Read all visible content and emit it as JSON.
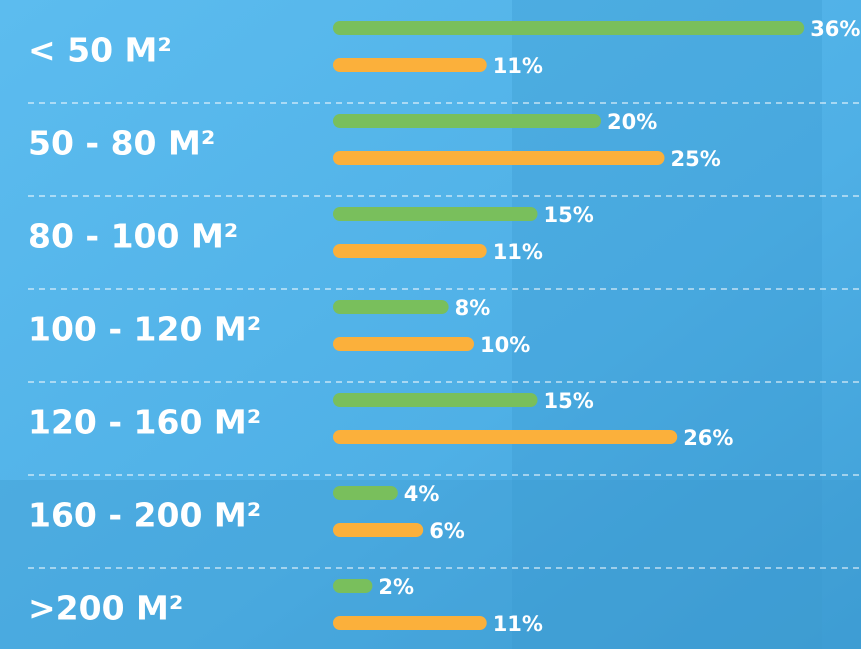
{
  "chart_data": {
    "type": "bar",
    "orientation": "horizontal",
    "categories": [
      "< 50 M²",
      "50 - 80 M²",
      "80 - 100 M²",
      "100 - 120 M²",
      "120 - 160 M²",
      "160 - 200 M²",
      ">200 M²"
    ],
    "series": [
      {
        "color": "#79bf5c",
        "values": [
          36,
          20,
          15,
          8,
          15,
          4,
          2
        ],
        "value_labels": [
          "36%",
          "20%",
          "15%",
          "8%",
          "15%",
          "4%",
          "2%"
        ]
      },
      {
        "color": "#fbb03b",
        "values": [
          11,
          25,
          11,
          10,
          26,
          6,
          11
        ],
        "value_labels": [
          "11%",
          "25%",
          "11%",
          "10%",
          "26%",
          "6%",
          "11%"
        ]
      }
    ]
  }
}
